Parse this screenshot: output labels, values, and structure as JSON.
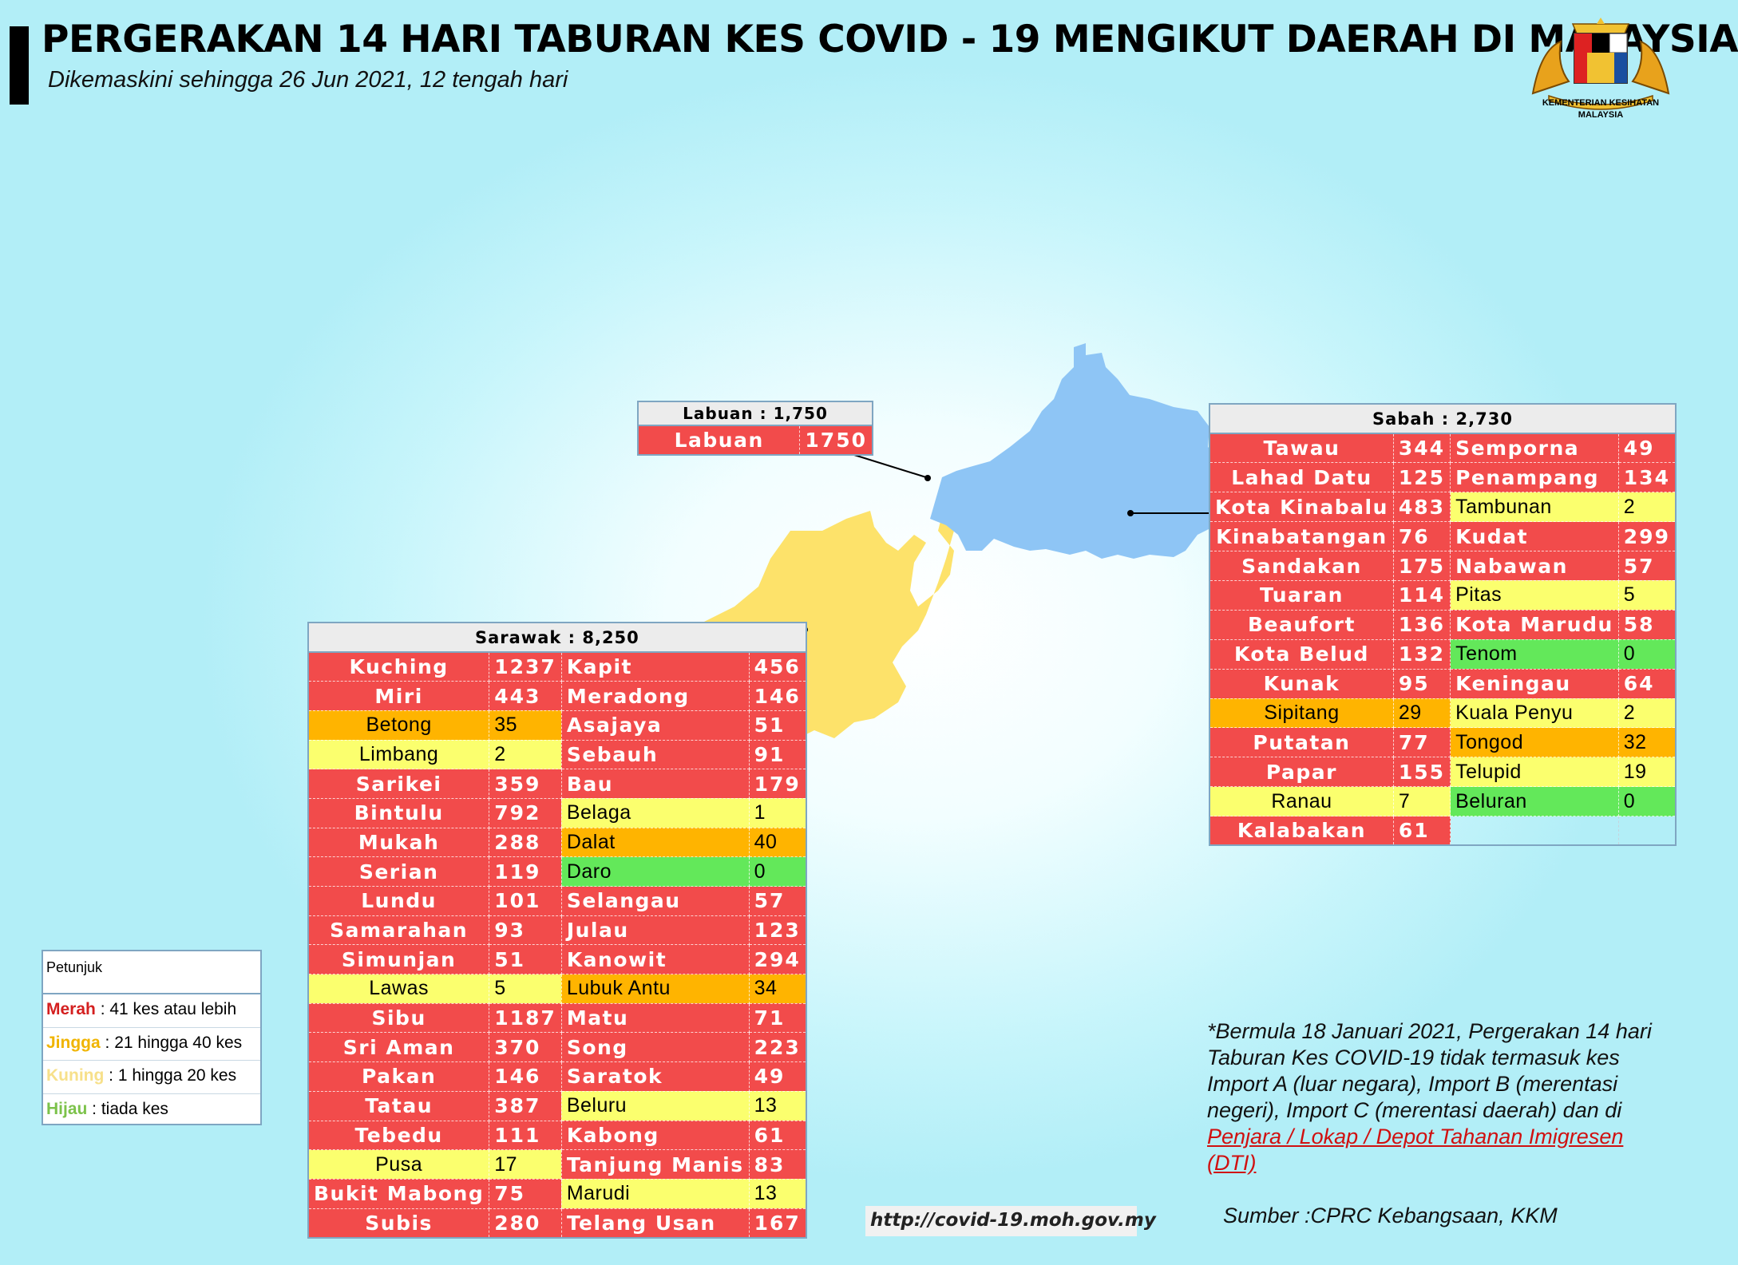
{
  "header": {
    "title": "PERGERAKAN 14 HARI TABURAN KES COVID - 19 MENGIKUT DAERAH DI MALAYSIA",
    "subtitle": "Dikemaskini sehingga 26 Jun 2021, 12 tengah hari",
    "logo_text_1": "KEMENTERIAN KESIHATAN",
    "logo_text_2": "MALAYSIA"
  },
  "colors": {
    "red": "#f24b4b",
    "orange": "#ffb400",
    "yellow": "#fbff6e",
    "green": "#63e85a",
    "sabah": "#8ec5f5",
    "sarawak": "#fde26a"
  },
  "labuan": {
    "header": "Labuan : 1,750",
    "rows": [
      {
        "name": "Labuan",
        "value": "1750",
        "color": "red"
      }
    ]
  },
  "sabah": {
    "header": "Sabah : 2,730",
    "rows": [
      {
        "n1": "Tawau",
        "v1": "344",
        "c1": "red",
        "n2": "Semporna",
        "v2": "49",
        "c2": "red"
      },
      {
        "n1": "Lahad Datu",
        "v1": "125",
        "c1": "red",
        "n2": "Penampang",
        "v2": "134",
        "c2": "red"
      },
      {
        "n1": "Kota Kinabalu",
        "v1": "483",
        "c1": "red",
        "n2": "Tambunan",
        "v2": "2",
        "c2": "yellow"
      },
      {
        "n1": "Kinabatangan",
        "v1": "76",
        "c1": "red",
        "n2": "Kudat",
        "v2": "299",
        "c2": "red"
      },
      {
        "n1": "Sandakan",
        "v1": "175",
        "c1": "red",
        "n2": "Nabawan",
        "v2": "57",
        "c2": "red"
      },
      {
        "n1": "Tuaran",
        "v1": "114",
        "c1": "red",
        "n2": "Pitas",
        "v2": "5",
        "c2": "yellow"
      },
      {
        "n1": "Beaufort",
        "v1": "136",
        "c1": "red",
        "n2": "Kota Marudu",
        "v2": "58",
        "c2": "red"
      },
      {
        "n1": "Kota Belud",
        "v1": "132",
        "c1": "red",
        "n2": "Tenom",
        "v2": "0",
        "c2": "green"
      },
      {
        "n1": "Kunak",
        "v1": "95",
        "c1": "red",
        "n2": "Keningau",
        "v2": "64",
        "c2": "red"
      },
      {
        "n1": "Sipitang",
        "v1": "29",
        "c1": "orange",
        "n2": "Kuala Penyu",
        "v2": "2",
        "c2": "yellow"
      },
      {
        "n1": "Putatan",
        "v1": "77",
        "c1": "red",
        "n2": "Tongod",
        "v2": "32",
        "c2": "orange"
      },
      {
        "n1": "Papar",
        "v1": "155",
        "c1": "red",
        "n2": "Telupid",
        "v2": "19",
        "c2": "yellow"
      },
      {
        "n1": "Ranau",
        "v1": "7",
        "c1": "yellow",
        "n2": "Beluran",
        "v2": "0",
        "c2": "green"
      },
      {
        "n1": "Kalabakan",
        "v1": "61",
        "c1": "red",
        "n2": "",
        "v2": "",
        "c2": "empty"
      }
    ]
  },
  "sarawak": {
    "header": "Sarawak : 8,250",
    "rows": [
      {
        "n1": "Kuching",
        "v1": "1237",
        "c1": "red",
        "n2": "Kapit",
        "v2": "456",
        "c2": "red"
      },
      {
        "n1": "Miri",
        "v1": "443",
        "c1": "red",
        "n2": "Meradong",
        "v2": "146",
        "c2": "red"
      },
      {
        "n1": "Betong",
        "v1": "35",
        "c1": "orange",
        "n2": "Asajaya",
        "v2": "51",
        "c2": "red"
      },
      {
        "n1": "Limbang",
        "v1": "2",
        "c1": "yellow",
        "n2": "Sebauh",
        "v2": "91",
        "c2": "red"
      },
      {
        "n1": "Sarikei",
        "v1": "359",
        "c1": "red",
        "n2": "Bau",
        "v2": "179",
        "c2": "red"
      },
      {
        "n1": "Bintulu",
        "v1": "792",
        "c1": "red",
        "n2": "Belaga",
        "v2": "1",
        "c2": "yellow"
      },
      {
        "n1": "Mukah",
        "v1": "288",
        "c1": "red",
        "n2": "Dalat",
        "v2": "40",
        "c2": "orange"
      },
      {
        "n1": "Serian",
        "v1": "119",
        "c1": "red",
        "n2": "Daro",
        "v2": "0",
        "c2": "green"
      },
      {
        "n1": "Lundu",
        "v1": "101",
        "c1": "red",
        "n2": "Selangau",
        "v2": "57",
        "c2": "red"
      },
      {
        "n1": "Samarahan",
        "v1": "93",
        "c1": "red",
        "n2": "Julau",
        "v2": "123",
        "c2": "red"
      },
      {
        "n1": "Simunjan",
        "v1": "51",
        "c1": "red",
        "n2": "Kanowit",
        "v2": "294",
        "c2": "red"
      },
      {
        "n1": "Lawas",
        "v1": "5",
        "c1": "yellow",
        "n2": "Lubuk Antu",
        "v2": "34",
        "c2": "orange"
      },
      {
        "n1": "Sibu",
        "v1": "1187",
        "c1": "red",
        "n2": "Matu",
        "v2": "71",
        "c2": "red"
      },
      {
        "n1": "Sri Aman",
        "v1": "370",
        "c1": "red",
        "n2": "Song",
        "v2": "223",
        "c2": "red"
      },
      {
        "n1": "Pakan",
        "v1": "146",
        "c1": "red",
        "n2": "Saratok",
        "v2": "49",
        "c2": "red"
      },
      {
        "n1": "Tatau",
        "v1": "387",
        "c1": "red",
        "n2": "Beluru",
        "v2": "13",
        "c2": "yellow"
      },
      {
        "n1": "Tebedu",
        "v1": "111",
        "c1": "red",
        "n2": "Kabong",
        "v2": "61",
        "c2": "red"
      },
      {
        "n1": "Pusa",
        "v1": "17",
        "c1": "yellow",
        "n2": "Tanjung Manis",
        "v2": "83",
        "c2": "red"
      },
      {
        "n1": "Bukit Mabong",
        "v1": "75",
        "c1": "red",
        "n2": "Marudi",
        "v2": "13",
        "c2": "yellow"
      },
      {
        "n1": "Subis",
        "v1": "280",
        "c1": "red",
        "n2": "Telang Usan",
        "v2": "167",
        "c2": "red"
      }
    ]
  },
  "legend": {
    "title": "Petunjuk",
    "items": [
      {
        "key": "Merah",
        "text": " : 41 kes atau lebih",
        "color": "#d41f1f"
      },
      {
        "key": "Jingga",
        "text": " : 21 hingga 40 kes",
        "color": "#f0b400"
      },
      {
        "key": "Kuning",
        "text": " : 1 hingga 20 kes",
        "color": "#f7e08a"
      },
      {
        "key": "Hijau",
        "text": " : tiada kes",
        "color": "#7cc24a"
      }
    ]
  },
  "note": {
    "text": "*Bermula 18 Januari 2021, Pergerakan 14 hari Taburan Kes COVID-19 tidak termasuk kes Import A (luar negara), Import B (merentasi negeri), Import C (merentasi daerah) dan di ",
    "link": "Penjara / Lokap / Depot Tahanan Imigresen (DTI)"
  },
  "source": "Sumber :CPRC Kebangsaan,  KKM",
  "url": "http://covid-19.moh.gov.my"
}
